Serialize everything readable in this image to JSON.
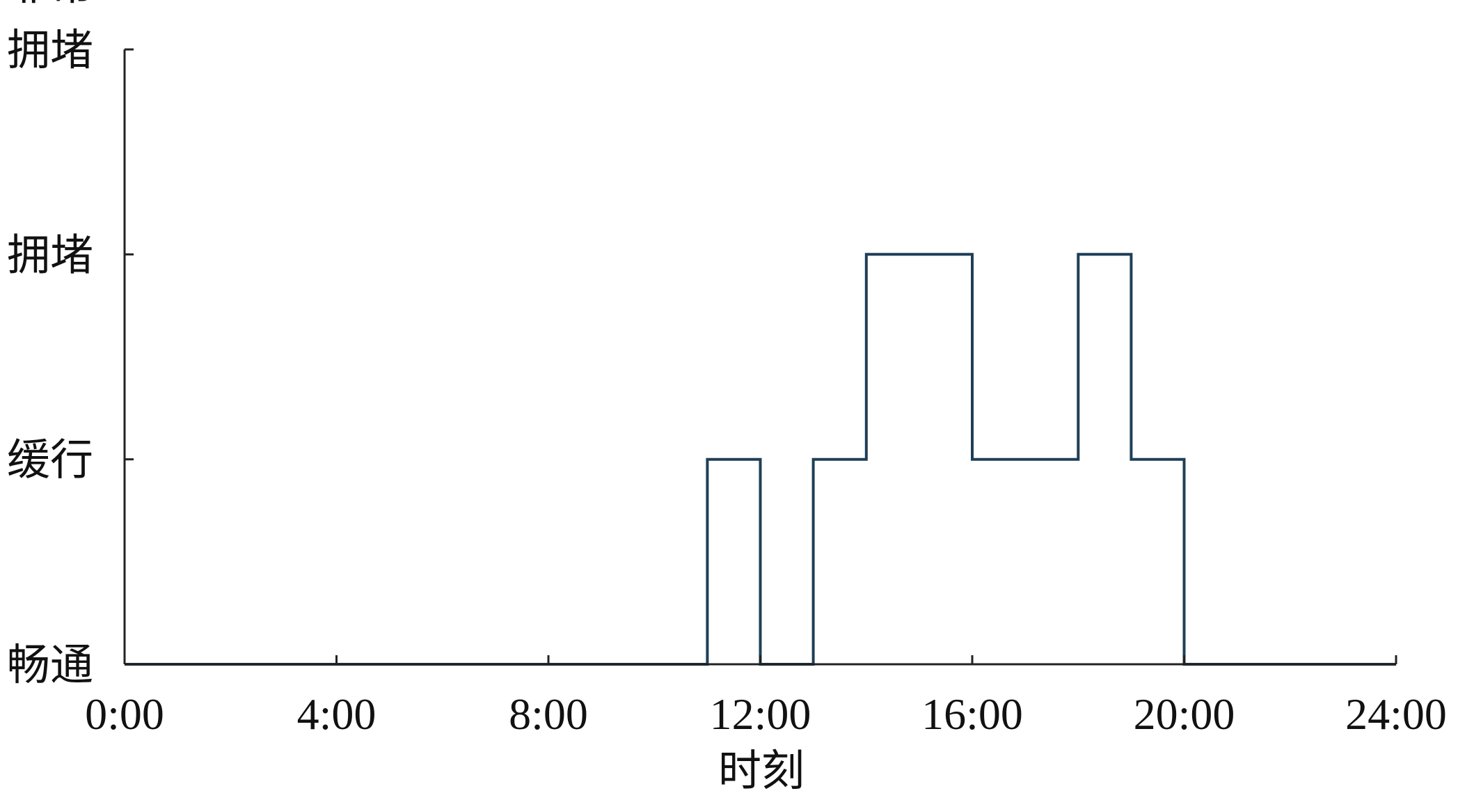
{
  "chart_data": {
    "type": "line",
    "step": true,
    "title": "",
    "xlabel": "时刻",
    "ylabel": "",
    "xlim": [
      0,
      24
    ],
    "ylim": [
      0,
      3
    ],
    "x_ticks": [
      {
        "value": 0,
        "label": "0:00"
      },
      {
        "value": 4,
        "label": "4:00"
      },
      {
        "value": 8,
        "label": "8:00"
      },
      {
        "value": 12,
        "label": "12:00"
      },
      {
        "value": 16,
        "label": "16:00"
      },
      {
        "value": 20,
        "label": "20:00"
      },
      {
        "value": 24,
        "label": "24:00"
      }
    ],
    "y_ticks": [
      {
        "value": 0,
        "lines": [
          "畅通"
        ]
      },
      {
        "value": 1,
        "lines": [
          "缓行"
        ]
      },
      {
        "value": 2,
        "lines": [
          "拥堵"
        ]
      },
      {
        "value": 3,
        "lines": [
          "非常",
          "拥堵"
        ]
      }
    ],
    "grid": false,
    "line_color": "#1f3f57",
    "series": [
      {
        "x": [
          0,
          11,
          11,
          12,
          12,
          13,
          13,
          14,
          14,
          16,
          16,
          18,
          18,
          19,
          19,
          20,
          20,
          24
        ],
        "y": [
          0,
          0,
          1,
          1,
          0,
          0,
          1,
          1,
          2,
          2,
          1,
          1,
          2,
          2,
          1,
          1,
          0,
          0
        ]
      }
    ]
  }
}
